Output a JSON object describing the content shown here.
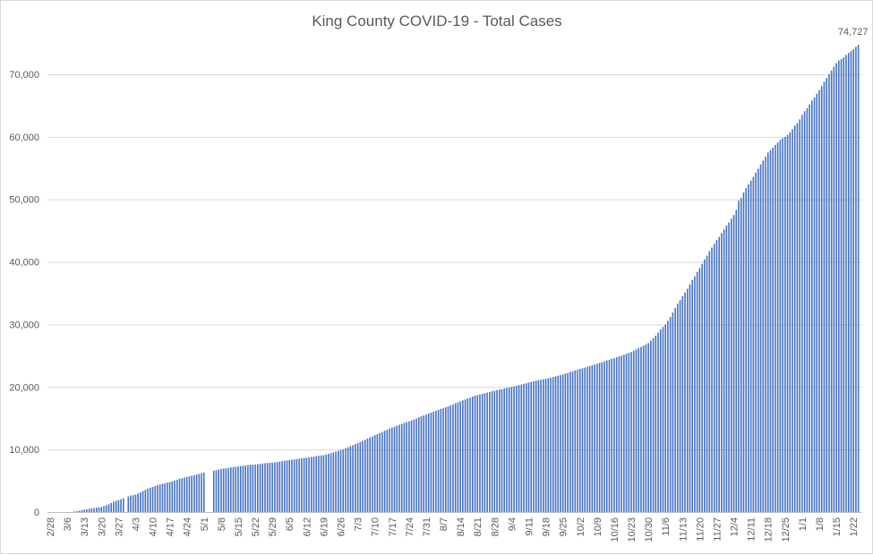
{
  "chart_data": {
    "type": "bar",
    "title": "King County COVID-19 - Total Cases",
    "xlabel": "",
    "ylabel": "",
    "ylim": [
      0,
      80000
    ],
    "y_ticks": [
      "0",
      "10,000",
      "20,000",
      "30,000",
      "40,000",
      "50,000",
      "60,000",
      "70,000"
    ],
    "y_tick_values": [
      0,
      10000,
      20000,
      30000,
      40000,
      50000,
      60000,
      70000
    ],
    "grid": true,
    "legend": "none",
    "bar_color": "#4472c4",
    "x_tick_every_days": 7,
    "x_tick_labels": [
      "2/28",
      "3/6",
      "3/13",
      "3/20",
      "3/27",
      "4/3",
      "4/10",
      "4/17",
      "4/24",
      "5/1",
      "5/8",
      "5/15",
      "5/22",
      "5/29",
      "6/5",
      "6/12",
      "6/19",
      "6/26",
      "7/3",
      "7/10",
      "7/17",
      "7/24",
      "7/31",
      "8/7",
      "8/14",
      "8/21",
      "8/28",
      "9/4",
      "9/11",
      "9/18",
      "9/25",
      "10/2",
      "10/9",
      "10/16",
      "10/23",
      "10/30",
      "11/6",
      "11/13",
      "11/20",
      "11/27",
      "12/4",
      "12/11",
      "12/18",
      "12/25",
      "1/1",
      "1/8",
      "1/15",
      "1/22"
    ],
    "data_label": "74,727",
    "values": [
      0,
      0,
      0,
      0,
      0,
      0,
      0,
      0,
      0,
      0,
      100,
      150,
      200,
      300,
      400,
      450,
      520,
      580,
      650,
      700,
      750,
      800,
      950,
      1100,
      1250,
      1450,
      1650,
      1800,
      1900,
      2050,
      2200,
      null,
      2500,
      2650,
      2700,
      2800,
      2950,
      3150,
      3350,
      3550,
      3750,
      3900,
      4000,
      4150,
      4300,
      4400,
      4500,
      4600,
      4700,
      4800,
      4900,
      5050,
      5150,
      5300,
      5400,
      5500,
      5600,
      5700,
      5800,
      5900,
      6000,
      6100,
      6200,
      6300,
      null,
      null,
      null,
      6600,
      6700,
      6800,
      6900,
      6950,
      7000,
      7050,
      7150,
      7200,
      7250,
      7300,
      7350,
      7400,
      7450,
      7500,
      7550,
      7580,
      7600,
      7650,
      7700,
      7750,
      7800,
      7850,
      7880,
      7900,
      7950,
      8000,
      8050,
      8150,
      8200,
      8250,
      8300,
      8350,
      8400,
      8450,
      8550,
      8600,
      8650,
      8700,
      8750,
      8800,
      8850,
      8950,
      9000,
      9050,
      9100,
      9200,
      9300,
      9400,
      9550,
      9650,
      9800,
      9900,
      10050,
      10200,
      10350,
      10550,
      10700,
      10850,
      11000,
      11200,
      11400,
      11550,
      11750,
      11950,
      12100,
      12300,
      12450,
      12650,
      12800,
      13000,
      13150,
      13350,
      13500,
      13650,
      13800,
      13950,
      14100,
      14250,
      14400,
      14500,
      14650,
      14800,
      14950,
      15150,
      15300,
      15450,
      15600,
      15750,
      15900,
      16050,
      16200,
      16350,
      16500,
      16600,
      16750,
      16900,
      17050,
      17200,
      17400,
      17550,
      17700,
      17850,
      18000,
      18150,
      18300,
      18450,
      18600,
      18700,
      18800,
      18900,
      19000,
      19100,
      19200,
      19300,
      19400,
      19500,
      19600,
      19650,
      19750,
      19850,
      19900,
      20000,
      20100,
      20200,
      20300,
      20400,
      20500,
      20600,
      20700,
      20800,
      20900,
      21000,
      21100,
      21150,
      21250,
      21300,
      21400,
      21500,
      21600,
      21700,
      21800,
      21900,
      22000,
      22150,
      22250,
      22400,
      22500,
      22650,
      22750,
      22900,
      23000,
      23100,
      23250,
      23350,
      23450,
      23600,
      23700,
      23850,
      23950,
      24100,
      24250,
      24350,
      24500,
      24600,
      24750,
      24900,
      25000,
      25150,
      25300,
      25450,
      25600,
      25800,
      26000,
      26200,
      26400,
      26600,
      26800,
      27000,
      27400,
      27800,
      28200,
      28700,
      29200,
      29600,
      30000,
      30600,
      31200,
      31900,
      32600,
      33300,
      33900,
      34500,
      35100,
      35700,
      36400,
      37100,
      37700,
      38400,
      39000,
      39700,
      40400,
      41000,
      41700,
      42300,
      42900,
      43500,
      44000,
      44600,
      45200,
      45800,
      46300,
      46900,
      47500,
      48300,
      49800,
      50200,
      51100,
      51800,
      52400,
      53000,
      53600,
      54300,
      54900,
      55600,
      56200,
      56800,
      57500,
      57900,
      58300,
      58700,
      59100,
      59500,
      59800,
      60000,
      60300,
      60700,
      61200,
      61800,
      62200,
      62800,
      63500,
      64100,
      64600,
      65200,
      65800,
      66300,
      66900,
      67500,
      68100,
      68800,
      69400,
      70000,
      70600,
      71200,
      71800,
      72200,
      72400,
      72700,
      73100,
      73400,
      73700,
      74000,
      74400,
      74727
    ]
  }
}
